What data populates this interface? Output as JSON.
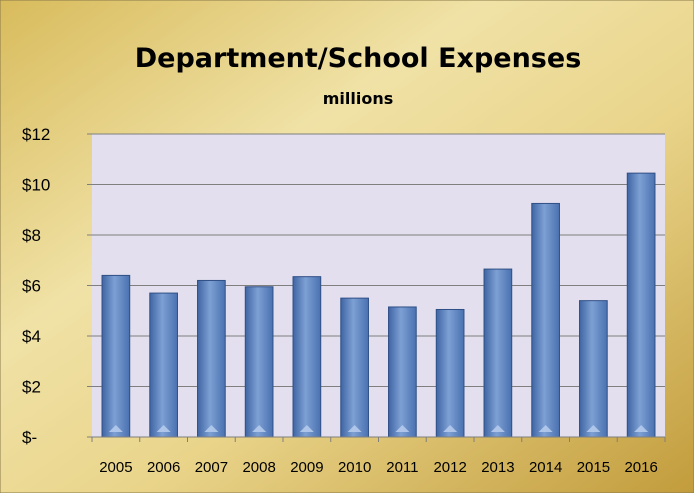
{
  "chart_data": {
    "type": "bar",
    "title": "Department/School Expenses",
    "subtitle": "millions",
    "xlabel": "",
    "ylabel": "",
    "categories": [
      "2005",
      "2006",
      "2007",
      "2008",
      "2009",
      "2010",
      "2011",
      "2012",
      "2013",
      "2014",
      "2015",
      "2016"
    ],
    "values": [
      6.4,
      5.7,
      6.2,
      5.95,
      6.35,
      5.5,
      5.15,
      5.05,
      6.65,
      9.25,
      5.4,
      10.45
    ],
    "ylim": [
      0,
      12
    ],
    "yticks": [
      0,
      2,
      4,
      6,
      8,
      10,
      12
    ],
    "ytick_labels": [
      "$-",
      "$2",
      "$4",
      "$6",
      "$8",
      "$10",
      "$12"
    ],
    "grid": true,
    "legend": "none",
    "colors": {
      "bar": "#5b82bf",
      "bar_light": "#9db8e0",
      "bar_dark": "#3c5f99",
      "plot_bg": "#e4e0ee",
      "frame_gold": "#c9a646",
      "frame_light": "#f3e8b5"
    }
  }
}
